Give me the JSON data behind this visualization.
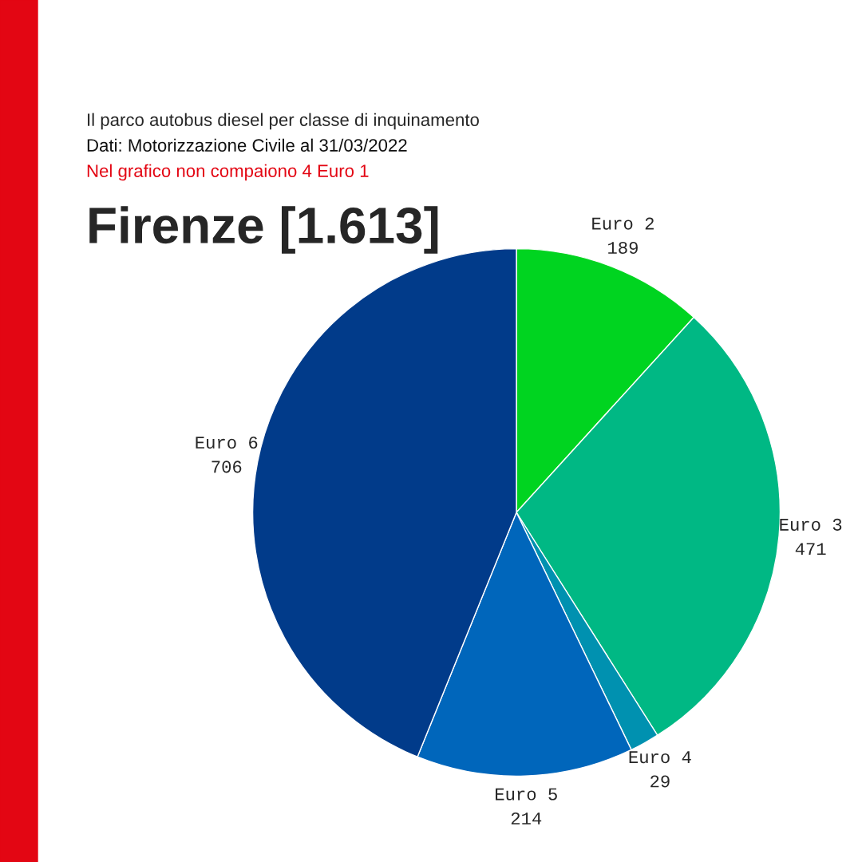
{
  "chart_data": {
    "type": "pie",
    "title": "Firenze [1.613]",
    "subtitle": "Il parco autobus diesel per classe di inquinamento",
    "annotations": [
      "Dati: Motorizzazione Civile al 31/03/2022",
      "Nel grafico non compaiono 4 Euro 1"
    ],
    "categories": [
      "Euro 2",
      "Euro 3",
      "Euro 4",
      "Euro 5",
      "Euro 6"
    ],
    "values": [
      189,
      471,
      29,
      214,
      706
    ],
    "colors": [
      "#00d420",
      "#00b884",
      "#0091b0",
      "#0066bb",
      "#013b8a"
    ],
    "data_labels": true
  }
}
